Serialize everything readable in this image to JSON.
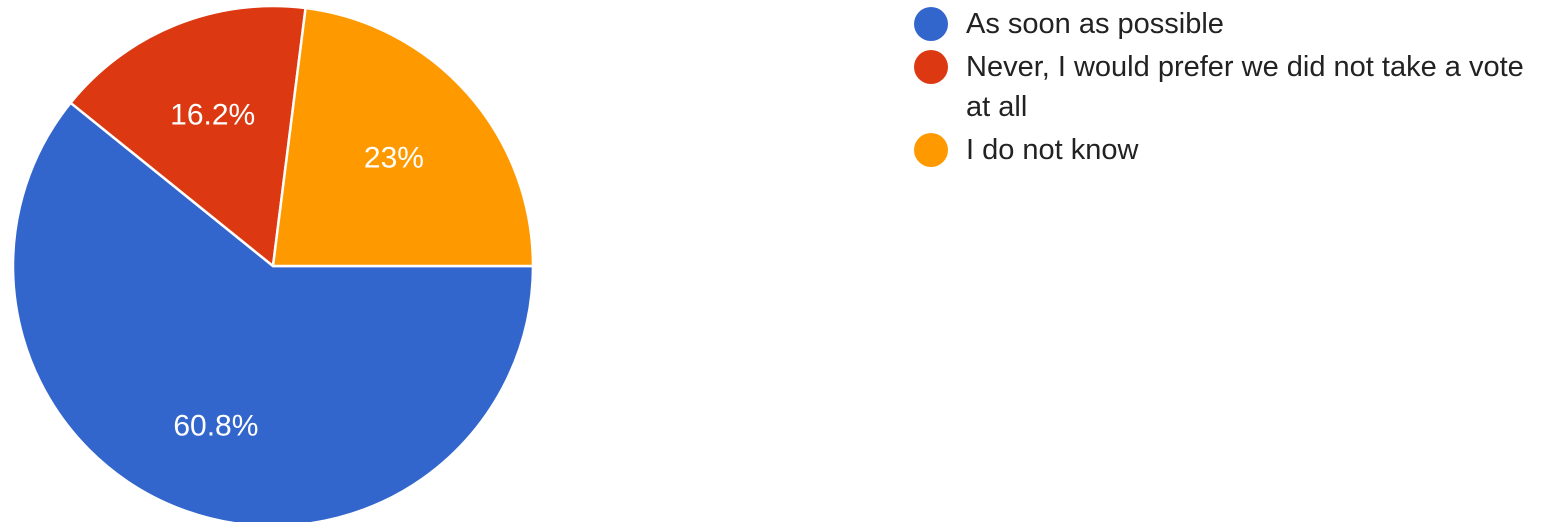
{
  "chart_data": {
    "type": "pie",
    "title": "",
    "slices": [
      {
        "label": "As soon as possible",
        "value": 60.8,
        "value_label": "60.8%",
        "color": "#3366cc"
      },
      {
        "label": "Never, I would prefer we did not take a vote at all",
        "value": 16.2,
        "value_label": "16.2%",
        "color": "#dc3912"
      },
      {
        "label": "I do not know",
        "value": 23.0,
        "value_label": "23%",
        "color": "#ff9900"
      }
    ],
    "legend_position": "right",
    "label_color": "#ffffff"
  }
}
